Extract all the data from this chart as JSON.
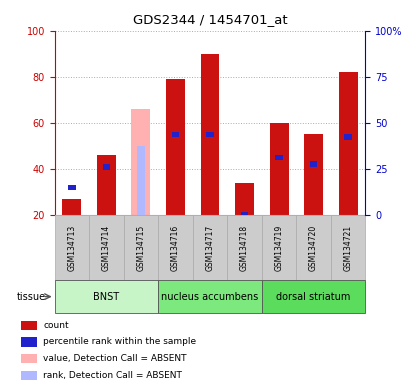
{
  "title": "GDS2344 / 1454701_at",
  "samples": [
    "GSM134713",
    "GSM134714",
    "GSM134715",
    "GSM134716",
    "GSM134717",
    "GSM134718",
    "GSM134719",
    "GSM134720",
    "GSM134721"
  ],
  "red_values": [
    27,
    46,
    0,
    79,
    90,
    34,
    60,
    55,
    82
  ],
  "blue_values": [
    32,
    41,
    0,
    55,
    55,
    20,
    45,
    42,
    54
  ],
  "pink_values": [
    0,
    0,
    66,
    0,
    0,
    0,
    0,
    0,
    0
  ],
  "lightblue_values": [
    0,
    0,
    50,
    0,
    0,
    0,
    0,
    0,
    0
  ],
  "absent_flags": [
    false,
    false,
    true,
    false,
    false,
    false,
    false,
    false,
    false
  ],
  "tissue_groups": [
    {
      "label": "BNST",
      "start": 0,
      "end": 3,
      "color": "#c8f5c8"
    },
    {
      "label": "nucleus accumbens",
      "start": 3,
      "end": 6,
      "color": "#7de87d"
    },
    {
      "label": "dorsal striatum",
      "start": 6,
      "end": 9,
      "color": "#5cdc5c"
    }
  ],
  "ylim_left": [
    20,
    100
  ],
  "ylim_right": [
    0,
    100
  ],
  "yticks_left": [
    20,
    40,
    60,
    80,
    100
  ],
  "yticks_right": [
    0,
    25,
    50,
    75,
    100
  ],
  "ytick_labels_right": [
    "0",
    "25",
    "50",
    "75",
    "100%"
  ],
  "left_axis_color": "#cc0000",
  "right_axis_color": "#0000cc",
  "red_color": "#cc1111",
  "blue_color": "#2222cc",
  "pink_color": "#ffb0b0",
  "lightblue_color": "#b0b8ff",
  "bg_xticklabel": "#cccccc",
  "legend_items": [
    {
      "color": "#cc1111",
      "label": "count"
    },
    {
      "color": "#2222cc",
      "label": "percentile rank within the sample"
    },
    {
      "color": "#ffb0b0",
      "label": "value, Detection Call = ABSENT"
    },
    {
      "color": "#b0b8ff",
      "label": "rank, Detection Call = ABSENT"
    }
  ]
}
